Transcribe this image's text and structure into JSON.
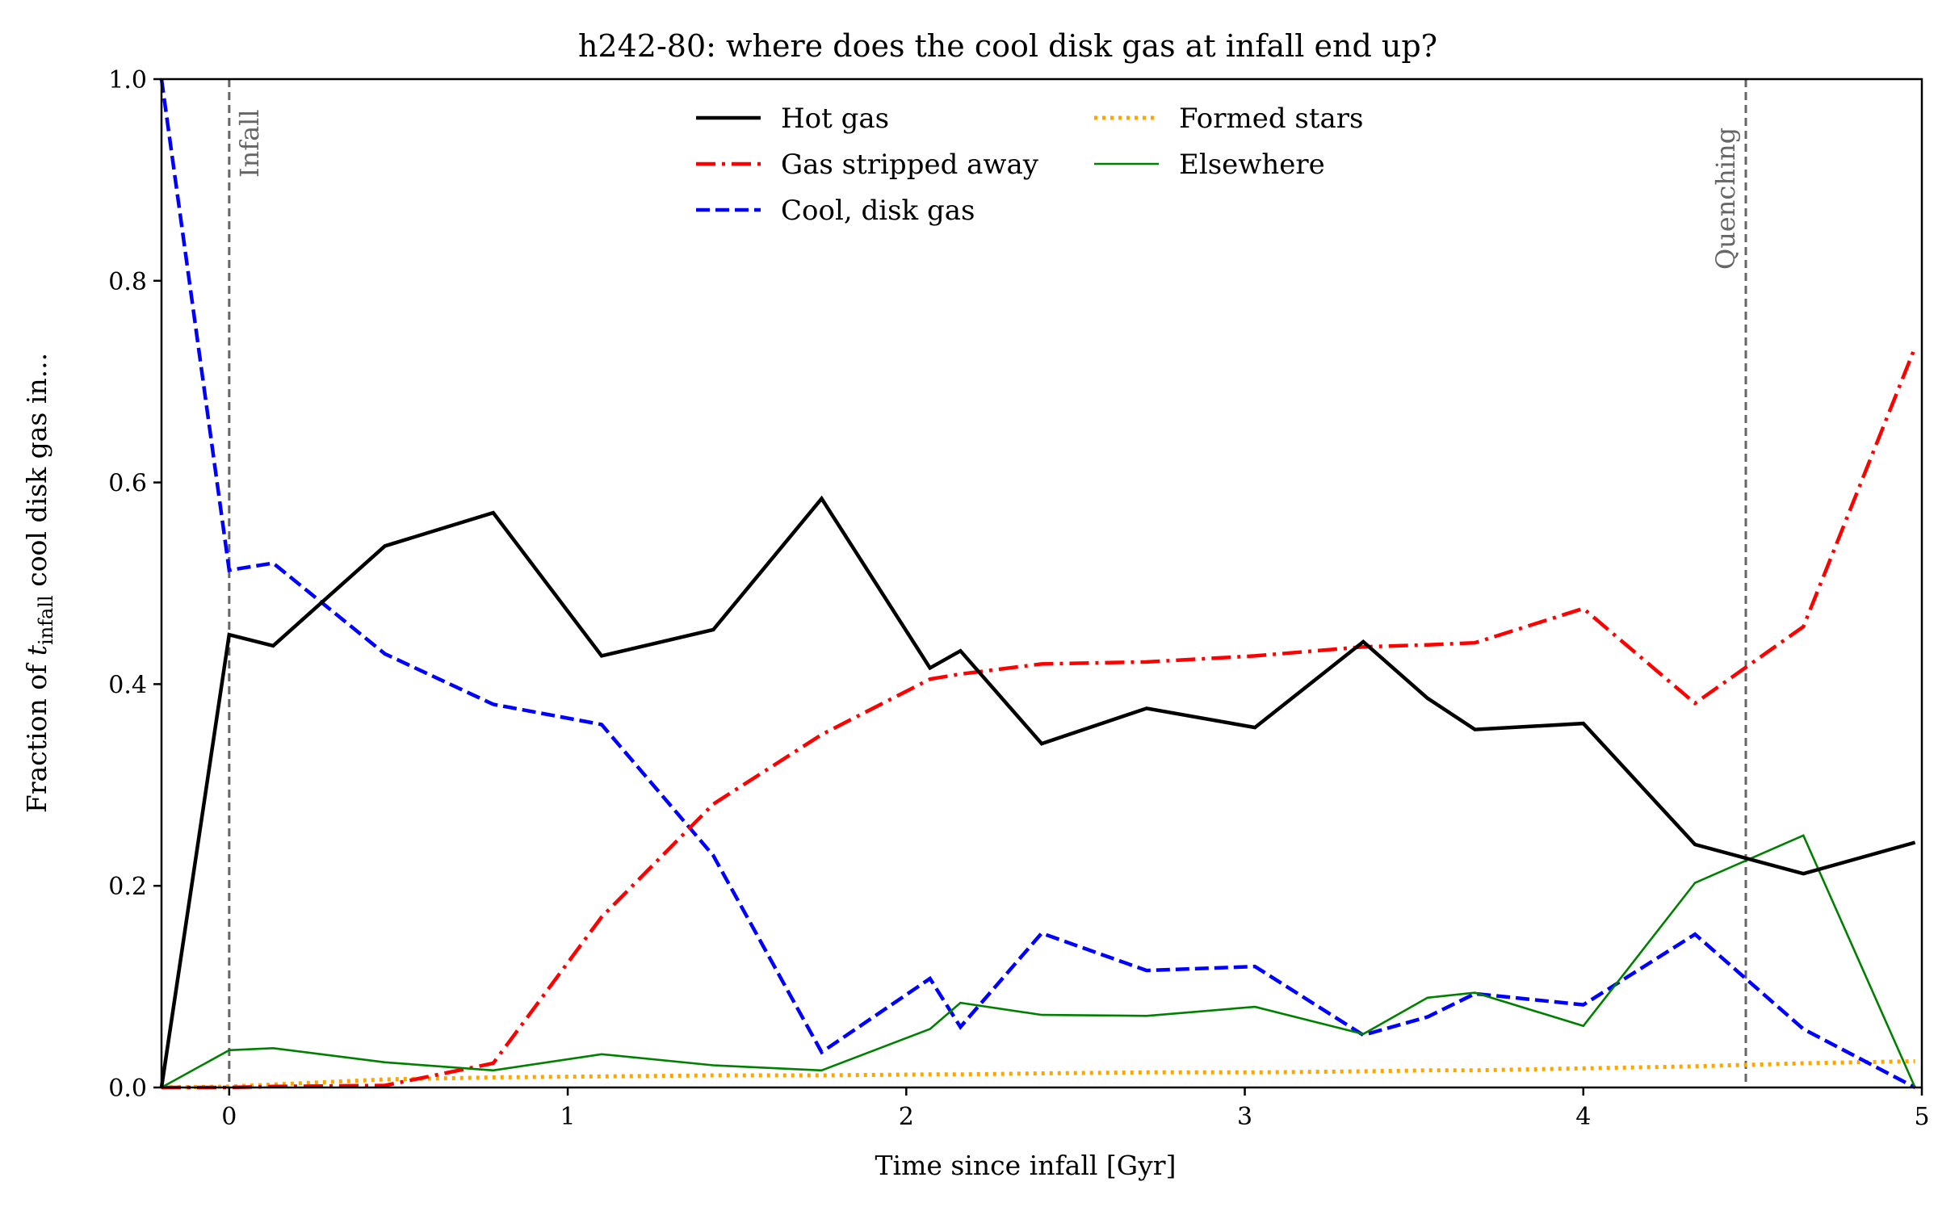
{
  "chart_data": {
    "type": "line",
    "title": "h242-80: where does the cool disk gas at infall end up?",
    "xlabel": "Time since infall [Gyr]",
    "ylabel": {
      "prefix": "Fraction of ",
      "var": "t",
      "sub": "infall",
      "suffix": " cool disk gas in..."
    },
    "xlim": [
      -0.2,
      5.0
    ],
    "ylim": [
      0.0,
      1.0
    ],
    "xticks": [
      0,
      1,
      2,
      3,
      4,
      5
    ],
    "yticks": [
      0.0,
      0.2,
      0.4,
      0.6,
      0.8,
      1.0
    ],
    "xtick_labels": [
      "0",
      "1",
      "2",
      "3",
      "4",
      "5"
    ],
    "ytick_labels": [
      "0.0",
      "0.2",
      "0.4",
      "0.6",
      "0.8",
      "1.0"
    ],
    "grid": false,
    "legend_position": "top-center",
    "vlines": [
      {
        "label": "Infall",
        "x": 0.0,
        "color": "#666666"
      },
      {
        "label": "Quenching",
        "x": 4.48,
        "color": "#666666"
      }
    ],
    "series": [
      {
        "name": "Hot gas",
        "color": "#000000",
        "style": "solid",
        "x": [
          -0.2,
          0.0,
          0.13,
          0.46,
          0.78,
          1.1,
          1.43,
          1.75,
          2.07,
          2.16,
          2.4,
          2.71,
          3.03,
          3.35,
          3.54,
          3.68,
          4.0,
          4.33,
          4.65,
          4.98
        ],
        "y": [
          0.0,
          0.449,
          0.438,
          0.537,
          0.57,
          0.428,
          0.454,
          0.584,
          0.416,
          0.433,
          0.341,
          0.376,
          0.357,
          0.442,
          0.386,
          0.355,
          0.361,
          0.241,
          0.212,
          0.243
        ]
      },
      {
        "name": "Gas stripped away",
        "color": "#ff0000",
        "style": "dashdot",
        "x": [
          -0.2,
          0.0,
          0.13,
          0.46,
          0.78,
          1.1,
          1.43,
          1.75,
          2.07,
          2.16,
          2.4,
          2.71,
          3.03,
          3.35,
          3.54,
          3.68,
          4.0,
          4.33,
          4.65,
          4.98
        ],
        "y": [
          0.0,
          0.0,
          0.001,
          0.002,
          0.024,
          0.169,
          0.281,
          0.35,
          0.405,
          0.41,
          0.42,
          0.422,
          0.428,
          0.437,
          0.439,
          0.441,
          0.475,
          0.381,
          0.457,
          0.734
        ]
      },
      {
        "name": "Cool, disk gas",
        "color": "#0000ff",
        "style": "dashed",
        "x": [
          -0.2,
          0.0,
          0.13,
          0.46,
          0.78,
          1.1,
          1.43,
          1.75,
          2.07,
          2.16,
          2.4,
          2.71,
          3.03,
          3.35,
          3.54,
          3.68,
          4.0,
          4.33,
          4.65,
          4.98
        ],
        "y": [
          1.0,
          0.513,
          0.52,
          0.43,
          0.38,
          0.36,
          0.23,
          0.035,
          0.108,
          0.06,
          0.153,
          0.116,
          0.12,
          0.052,
          0.07,
          0.093,
          0.082,
          0.152,
          0.058,
          0.0
        ]
      },
      {
        "name": "Formed stars",
        "color": "#ffa500",
        "style": "dotted",
        "x": [
          -0.2,
          0.0,
          0.13,
          0.46,
          0.78,
          1.1,
          1.43,
          1.75,
          2.07,
          2.16,
          2.4,
          2.71,
          3.03,
          3.35,
          3.54,
          3.68,
          4.0,
          4.33,
          4.65,
          4.98
        ],
        "y": [
          0.0,
          0.001,
          0.003,
          0.008,
          0.01,
          0.011,
          0.012,
          0.012,
          0.013,
          0.013,
          0.014,
          0.015,
          0.015,
          0.016,
          0.017,
          0.017,
          0.019,
          0.021,
          0.024,
          0.026
        ]
      },
      {
        "name": "Elsewhere",
        "color": "#008000",
        "style": "thin",
        "x": [
          -0.2,
          0.0,
          0.13,
          0.46,
          0.78,
          1.1,
          1.43,
          1.75,
          2.07,
          2.16,
          2.4,
          2.71,
          3.03,
          3.35,
          3.54,
          3.68,
          4.0,
          4.33,
          4.65,
          4.98
        ],
        "y": [
          0.0,
          0.037,
          0.039,
          0.025,
          0.017,
          0.033,
          0.022,
          0.017,
          0.058,
          0.084,
          0.072,
          0.071,
          0.08,
          0.053,
          0.089,
          0.094,
          0.061,
          0.203,
          0.25,
          0.0
        ]
      }
    ]
  }
}
